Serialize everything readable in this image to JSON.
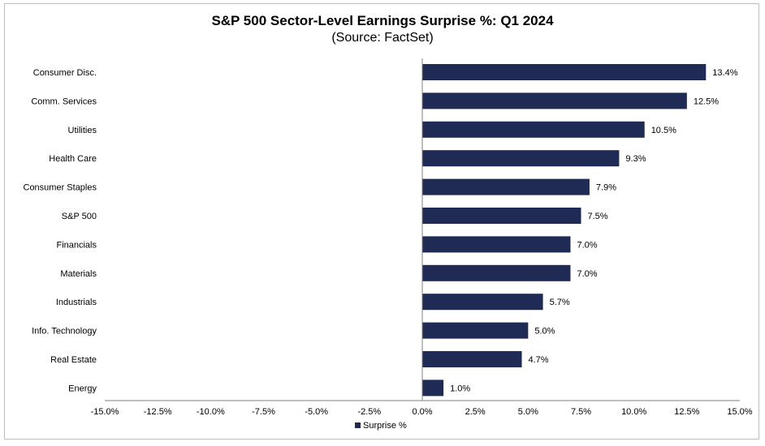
{
  "chart_data": {
    "type": "bar",
    "orientation": "horizontal",
    "title": "S&P 500 Sector-Level Earnings Surprise %: Q1 2024",
    "subtitle": "(Source: FactSet)",
    "categories": [
      "Consumer Disc.",
      "Comm. Services",
      "Utilities",
      "Health Care",
      "Consumer Staples",
      "S&P 500",
      "Financials",
      "Materials",
      "Industrials",
      "Info. Technology",
      "Real Estate",
      "Energy"
    ],
    "series": [
      {
        "name": "Surprise %",
        "values": [
          13.4,
          12.5,
          10.5,
          9.3,
          7.9,
          7.5,
          7.0,
          7.0,
          5.7,
          5.0,
          4.7,
          1.0
        ],
        "labels": [
          "13.4%",
          "12.5%",
          "10.5%",
          "9.3%",
          "7.9%",
          "7.5%",
          "7.0%",
          "7.0%",
          "5.7%",
          "5.0%",
          "4.7%",
          "1.0%"
        ],
        "color": "#1f2a55"
      }
    ],
    "xlim": [
      -15,
      15
    ],
    "x_ticks": [
      -15,
      -12.5,
      -10,
      -7.5,
      -5,
      -2.5,
      0,
      2.5,
      5,
      7.5,
      10,
      12.5,
      15
    ],
    "x_tick_labels": [
      "-15.0%",
      "-12.5%",
      "-10.0%",
      "-7.5%",
      "-5.0%",
      "-2.5%",
      "0.0%",
      "2.5%",
      "5.0%",
      "7.5%",
      "10.0%",
      "12.5%",
      "15.0%"
    ],
    "grid": false,
    "legend_position": "bottom-center"
  }
}
